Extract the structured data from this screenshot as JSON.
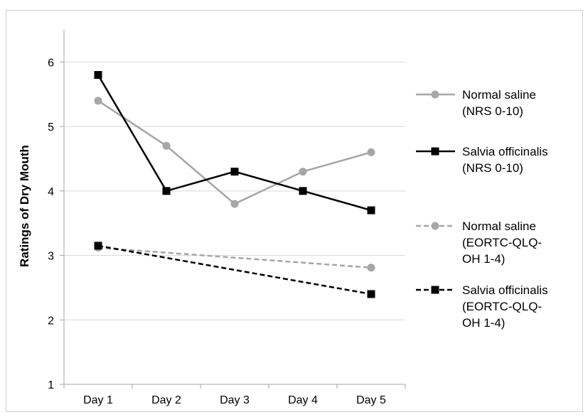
{
  "chart_data": {
    "type": "line",
    "categories": [
      "Day 1",
      "Day 2",
      "Day 3",
      "Day 4",
      "Day 5"
    ],
    "ylabel": "Ratings of Dry Mouth",
    "xlabel": "",
    "ylim": [
      1,
      6.5
    ],
    "yticks": [
      "1",
      "2",
      "3",
      "4",
      "5",
      "6"
    ],
    "grid": "horizontal",
    "legend_position": "right",
    "series": [
      {
        "name_lines": [
          "Normal saline",
          "(NRS 0-10)"
        ],
        "values": [
          5.4,
          4.7,
          3.8,
          4.3,
          4.6
        ],
        "color": "#a6a6a6",
        "dash": "solid",
        "marker": "circle"
      },
      {
        "name_lines": [
          "Salvia officinalis",
          "(NRS 0-10)"
        ],
        "values": [
          5.8,
          4.0,
          4.3,
          4.0,
          3.7
        ],
        "color": "#000000",
        "dash": "solid",
        "marker": "square"
      },
      {
        "name_lines": [
          "Normal saline",
          "(EORTC-QLQ-",
          "OH 1-4)"
        ],
        "values": [
          3.12,
          null,
          null,
          null,
          2.81
        ],
        "color": "#a6a6a6",
        "dash": "dashed",
        "marker": "circle"
      },
      {
        "name_lines": [
          "Salvia officinalis",
          "(EORTC-QLQ-",
          "OH 1-4)"
        ],
        "values": [
          3.15,
          null,
          null,
          null,
          2.4
        ],
        "color": "#000000",
        "dash": "dashed",
        "marker": "square"
      }
    ]
  }
}
